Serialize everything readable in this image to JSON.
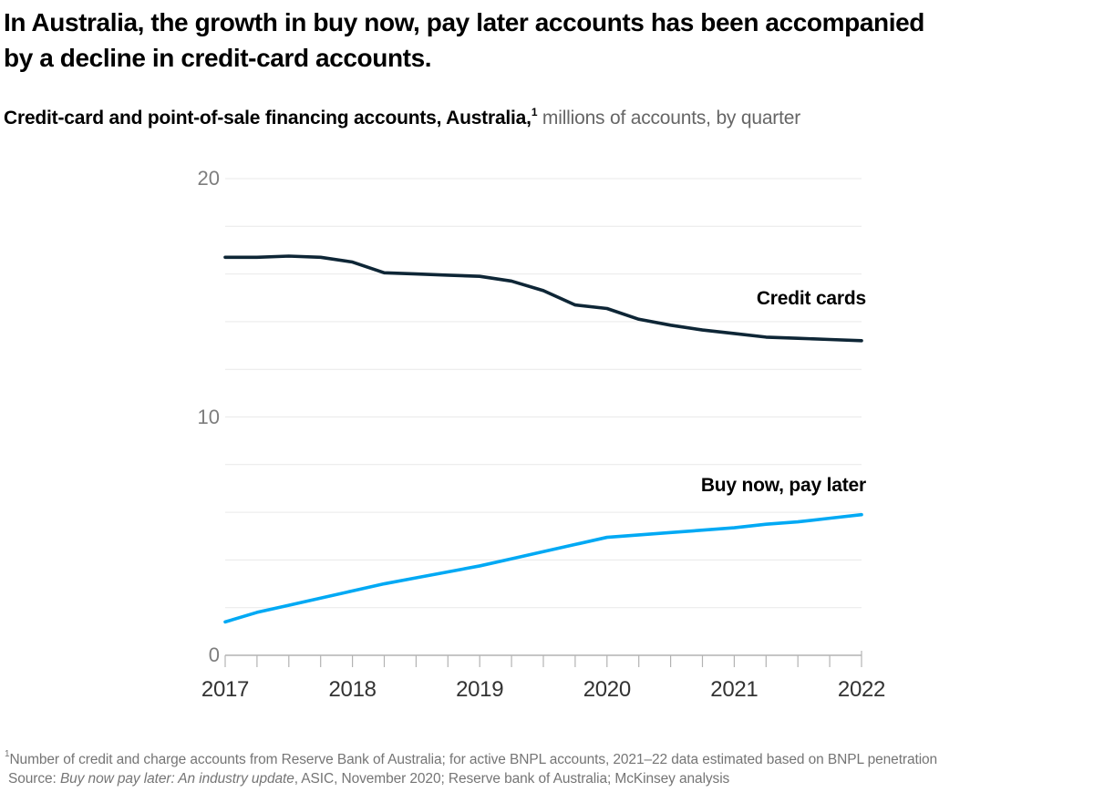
{
  "header": {
    "title_line1": "In Australia, the growth in buy now, pay later accounts has been accompanied",
    "title_line2": "by a decline in credit-card accounts.",
    "subtitle_bold": "Credit-card and point-of-sale financing accounts, Australia,",
    "subtitle_superscript": "1",
    "subtitle_rest": " millions of accounts, by quarter"
  },
  "chart_data": {
    "type": "line",
    "title": "Credit-card and point-of-sale financing accounts, Australia, millions of accounts, by quarter",
    "xlabel": "",
    "ylabel": "millions of accounts",
    "ylim": [
      0,
      20
    ],
    "y_ticks": [
      0,
      10,
      20
    ],
    "gridline_step": 2,
    "grid": "horizontal-light-gray",
    "legend_position": "labels-inline-right",
    "x_tick_labels": [
      "2017",
      "2018",
      "2019",
      "2020",
      "2021",
      "2022"
    ],
    "x_unit": "year, quarterly points",
    "x": [
      2017.0,
      2017.25,
      2017.5,
      2017.75,
      2018.0,
      2018.25,
      2018.5,
      2018.75,
      2019.0,
      2019.25,
      2019.5,
      2019.75,
      2020.0,
      2020.25,
      2020.5,
      2020.75,
      2021.0,
      2021.25,
      2021.5,
      2021.75,
      2022.0
    ],
    "series": [
      {
        "name": "Credit cards",
        "color": "#0e2636",
        "values": [
          16.7,
          16.7,
          16.75,
          16.7,
          16.5,
          16.05,
          16.0,
          15.95,
          15.9,
          15.7,
          15.3,
          14.7,
          14.55,
          14.1,
          13.85,
          13.65,
          13.5,
          13.35,
          13.3,
          13.25,
          13.2
        ]
      },
      {
        "name": "Buy now, pay later",
        "color": "#00a9f4",
        "values": [
          1.4,
          1.8,
          2.1,
          2.4,
          2.7,
          3.0,
          3.25,
          3.5,
          3.75,
          4.05,
          4.35,
          4.65,
          4.95,
          5.05,
          5.15,
          5.25,
          5.35,
          5.5,
          5.6,
          5.75,
          5.9
        ]
      }
    ]
  },
  "theme": {
    "background": "#ffffff",
    "credit_line_color": "#0e2636",
    "bnpl_line_color": "#00a9f4",
    "gridline_color": "#e9e9e9",
    "axis_color": "#b3b3b3",
    "y_tick_label_color": "#7d7d7d",
    "x_tick_label_color": "#333333",
    "footnote_color": "#757575",
    "subtitle_gray": "#666666"
  },
  "footnote": {
    "marker": "1",
    "note": "Number of credit and charge accounts from Reserve Bank of Australia; for active BNPL accounts, 2021–22 data estimated based on BNPL penetration",
    "source_prefix": "Source: ",
    "source_italic": "Buy now pay later: An industry update",
    "source_rest": ", ASIC, November 2020; Reserve bank of Australia; McKinsey analysis"
  }
}
